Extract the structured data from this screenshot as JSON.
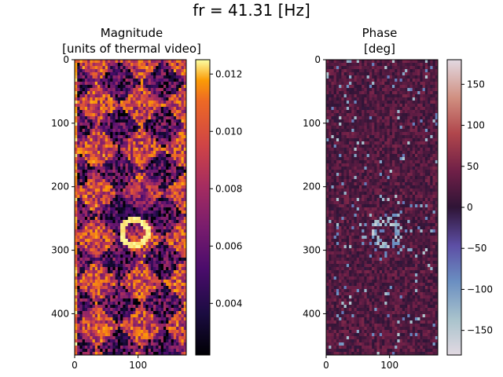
{
  "figure": {
    "suptitle": "fr = 41.31 [Hz]"
  },
  "chart_data": [
    {
      "type": "heatmap",
      "title_line1": "Magnitude",
      "title_line2": "[units of thermal video]",
      "colormap": "inferno",
      "x_range": [
        0,
        176
      ],
      "y_range": [
        0,
        465
      ],
      "y_inverted": true,
      "xticks": [
        0,
        100
      ],
      "yticks": [
        0,
        100,
        200,
        300,
        400
      ],
      "colorbar": {
        "min": 0.0022,
        "max": 0.0125,
        "ticks": [
          "0.004",
          "0.006",
          "0.008",
          "0.010",
          "0.012"
        ],
        "tick_values": [
          0.004,
          0.006,
          0.008,
          0.01,
          0.012
        ]
      },
      "features": {
        "ring_center": [
          95,
          272
        ],
        "ring_radius": 20,
        "pattern": "diagonal checkerboard"
      }
    },
    {
      "type": "heatmap",
      "title_line1": "Phase",
      "title_line2": "[deg]",
      "colormap": "twilight_shifted",
      "x_range": [
        0,
        176
      ],
      "y_range": [
        0,
        465
      ],
      "y_inverted": true,
      "xticks": [
        0,
        100
      ],
      "yticks": [
        0,
        100,
        200,
        300,
        400
      ],
      "colorbar": {
        "min": -180,
        "max": 180,
        "ticks": [
          "150",
          "100",
          "50",
          "0",
          "−50",
          "−100",
          "−150"
        ],
        "tick_values": [
          150,
          100,
          50,
          0,
          -50,
          -100,
          -150
        ]
      },
      "features": {
        "ring_center": [
          95,
          272
        ],
        "ring_radius": 20
      }
    }
  ]
}
